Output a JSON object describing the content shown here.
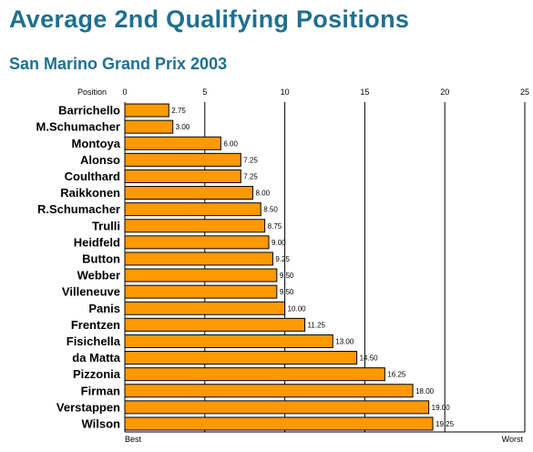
{
  "title": "Average 2nd Qualifying Positions",
  "subtitle": "San Marino Grand Prix 2003",
  "chart_data": {
    "type": "bar",
    "orientation": "horizontal",
    "title": "Average 2nd Qualifying Positions",
    "subtitle": "San Marino Grand Prix 2003",
    "xlabel": "Position",
    "ylabel": "",
    "xlim": [
      0,
      25
    ],
    "ticks": [
      0,
      5,
      10,
      15,
      20,
      25
    ],
    "axis_end_labels": {
      "start": "Best",
      "end": "Worst"
    },
    "grid": true,
    "bar_color": "#ff9900",
    "categories": [
      "Barrichello",
      "M.Schumacher",
      "Montoya",
      "Alonso",
      "Coulthard",
      "Raikkonen",
      "R.Schumacher",
      "Trulli",
      "Heidfeld",
      "Button",
      "Webber",
      "Villeneuve",
      "Panis",
      "Frentzen",
      "Fisichella",
      "da Matta",
      "Pizzonia",
      "Firman",
      "Verstappen",
      "Wilson"
    ],
    "values": [
      2.75,
      3.0,
      6.0,
      7.25,
      7.25,
      8.0,
      8.5,
      8.75,
      9.0,
      9.25,
      9.5,
      9.5,
      10.0,
      11.25,
      13.0,
      14.5,
      16.25,
      18.0,
      19.0,
      19.25
    ],
    "value_labels": [
      "2.75",
      "3.00",
      "6.00",
      "7.25",
      "7.25",
      "8.00",
      "8.50",
      "8.75",
      "9.00",
      "9.25",
      "9.50",
      "9.50",
      "10.00",
      "11.25",
      "13.00",
      "14.50",
      "16.25",
      "18.00",
      "19.00",
      "19.25"
    ]
  }
}
